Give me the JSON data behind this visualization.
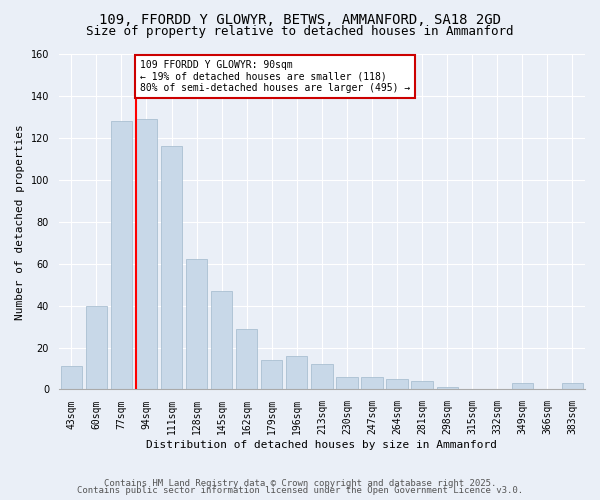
{
  "title": "109, FFORDD Y GLOWYR, BETWS, AMMANFORD, SA18 2GD",
  "subtitle": "Size of property relative to detached houses in Ammanford",
  "xlabel": "Distribution of detached houses by size in Ammanford",
  "ylabel": "Number of detached properties",
  "categories": [
    "43sqm",
    "60sqm",
    "77sqm",
    "94sqm",
    "111sqm",
    "128sqm",
    "145sqm",
    "162sqm",
    "179sqm",
    "196sqm",
    "213sqm",
    "230sqm",
    "247sqm",
    "264sqm",
    "281sqm",
    "298sqm",
    "315sqm",
    "332sqm",
    "349sqm",
    "366sqm",
    "383sqm"
  ],
  "values": [
    11,
    40,
    128,
    129,
    116,
    62,
    47,
    29,
    14,
    16,
    12,
    6,
    6,
    5,
    4,
    1,
    0,
    0,
    3,
    0,
    3
  ],
  "bar_color": "#c8d8e8",
  "bar_edge_color": "#a0b8cc",
  "red_line_index": 3,
  "annotation_text": "109 FFORDD Y GLOWYR: 90sqm\n← 19% of detached houses are smaller (118)\n80% of semi-detached houses are larger (495) →",
  "annotation_box_color": "#ffffff",
  "annotation_box_edge_color": "#cc0000",
  "ylim": [
    0,
    160
  ],
  "yticks": [
    0,
    20,
    40,
    60,
    80,
    100,
    120,
    140,
    160
  ],
  "footer1": "Contains HM Land Registry data © Crown copyright and database right 2025.",
  "footer2": "Contains public sector information licensed under the Open Government Licence v3.0.",
  "background_color": "#eaeff7",
  "plot_background_color": "#eaeff7",
  "title_fontsize": 10,
  "subtitle_fontsize": 9,
  "ylabel_fontsize": 8,
  "xlabel_fontsize": 8,
  "tick_fontsize": 7,
  "footer_fontsize": 6.5,
  "annotation_fontsize": 7
}
